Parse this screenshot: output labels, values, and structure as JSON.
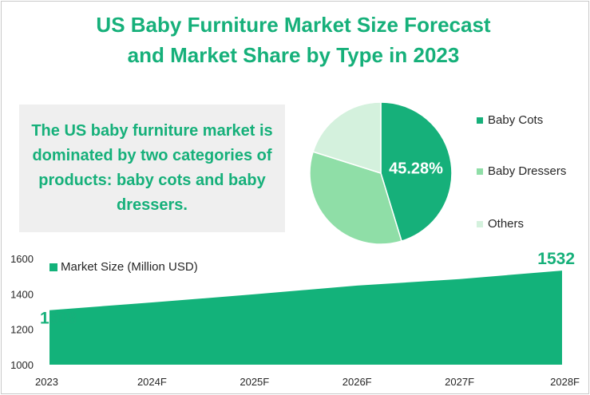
{
  "title_line1": "US Baby Furniture Market Size Forecast",
  "title_line2": "and Market Share by Type in 2023",
  "callout": "The US baby furniture market is dominated by two categories of products: baby cots and baby dressers.",
  "colors": {
    "accent": "#16b07a",
    "cots": "#16b07a",
    "dressers": "#8fdea7",
    "others": "#d4f1dd",
    "area": "#13b27a"
  },
  "chart_data": [
    {
      "type": "pie",
      "title": "",
      "categories": [
        "Baby Cots",
        "Baby Dressers",
        "Others"
      ],
      "values": [
        45.28,
        34.6,
        20.12
      ],
      "data_labels": [
        "45.28%",
        "",
        ""
      ],
      "legend_position": "right"
    },
    {
      "type": "area",
      "title": "",
      "x": [
        "2023",
        "2024F",
        "2025F",
        "2026F",
        "2027F",
        "2028F"
      ],
      "series": [
        {
          "name": "Market Size (Million USD)",
          "values": [
            1308,
            1352,
            1398,
            1447,
            1484,
            1532
          ]
        }
      ],
      "data_labels": [
        "1308",
        "",
        "",
        "",
        "",
        "1532"
      ],
      "yticks": [
        "1000",
        "1200",
        "1400",
        "1600"
      ],
      "ylim": [
        1000,
        1600
      ],
      "legend_position": "top-left",
      "grid": false
    }
  ]
}
